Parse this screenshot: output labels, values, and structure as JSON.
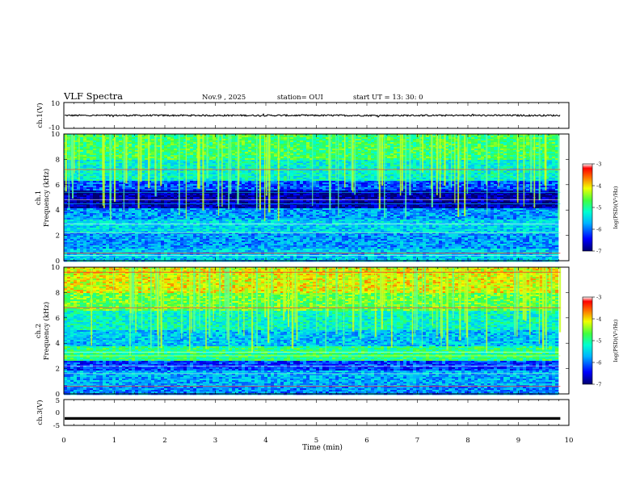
{
  "header": {
    "title": "VLF Spectra",
    "date": "Nov.9  , 2025",
    "station": "station= OUI",
    "start": "start  UT =   13: 30: 0"
  },
  "chart_data": [
    {
      "type": "line",
      "panel": "ch1-waveform",
      "ylabel": "ch.1(V)",
      "ylim": [
        -10,
        10
      ],
      "yticks": [
        "10",
        "-10"
      ],
      "xlim": [
        0,
        10
      ],
      "series_level": 0,
      "note_amplitude": 0.6
    },
    {
      "type": "heatmap",
      "panel": "ch1-spectrogram",
      "ylabel_line1": "ch.1",
      "ylabel_line2": "Frequency  (kHz)",
      "ylim": [
        0,
        10
      ],
      "yticks": [
        "0",
        "2",
        "4",
        "6",
        "8",
        "10"
      ],
      "xlim": [
        0,
        10
      ],
      "colorbar": {
        "label": "log(PSD)(V²/Hz)",
        "range": [
          -7,
          -3
        ],
        "ticks": [
          "-3",
          "-4",
          "-5",
          "-6",
          "-7"
        ]
      }
    },
    {
      "type": "heatmap",
      "panel": "ch2-spectrogram",
      "ylabel_line1": "ch.2",
      "ylabel_line2": "Frequency  (kHz)",
      "ylim": [
        0,
        10
      ],
      "yticks": [
        "0",
        "2",
        "4",
        "6",
        "8",
        "10"
      ],
      "xlim": [
        0,
        10
      ],
      "colorbar": {
        "label": "log(PSD)(V²/Hz)",
        "range": [
          -7,
          -3
        ],
        "ticks": [
          "-3",
          "-4",
          "-5",
          "-6",
          "-7"
        ]
      }
    },
    {
      "type": "line",
      "panel": "ch3-waveform",
      "ylabel": "ch.3(V)",
      "ylim": [
        -5,
        5
      ],
      "yticks": [
        "5",
        "0",
        "-5"
      ],
      "xlim": [
        0,
        10
      ],
      "series_level": -2.3
    }
  ],
  "xaxis": {
    "label": "Time  (min)",
    "ticks": [
      "0",
      "1",
      "2",
      "3",
      "4",
      "5",
      "6",
      "7",
      "8",
      "9",
      "10"
    ],
    "data_end": 9.83
  }
}
